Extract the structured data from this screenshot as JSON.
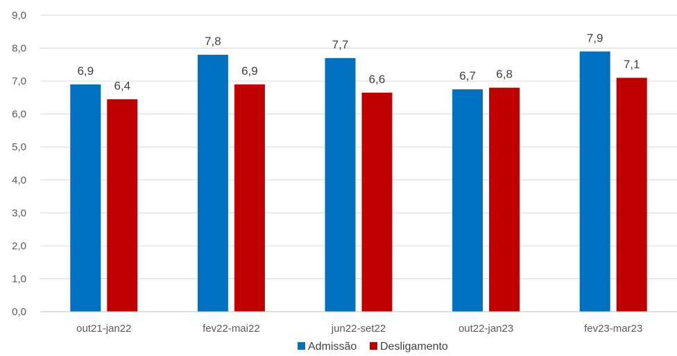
{
  "chart_data": {
    "type": "bar",
    "categories": [
      "out21-jan22",
      "fev22-mai22",
      "jun22-set22",
      "out22-jan23",
      "fev23-mar23"
    ],
    "series": [
      {
        "name": "Admissão",
        "values": [
          6.9,
          7.8,
          7.7,
          6.75,
          7.9
        ],
        "labels": [
          "6,9",
          "7,8",
          "7,7",
          "6,7",
          "7,9"
        ]
      },
      {
        "name": "Desligamento",
        "values": [
          6.45,
          6.9,
          6.65,
          6.8,
          7.1
        ],
        "labels": [
          "6,4",
          "6,9",
          "6,6",
          "6,8",
          "7,1"
        ]
      }
    ],
    "colors": [
      "#0070c0",
      "#c00000"
    ],
    "y_ticks": [
      "0,0",
      "1,0",
      "2,0",
      "3,0",
      "4,0",
      "5,0",
      "6,0",
      "7,0",
      "8,0",
      "9,0"
    ],
    "ylim": [
      0,
      9
    ],
    "grid": true,
    "legend": "bottom",
    "title": "",
    "xlabel": "",
    "ylabel": ""
  }
}
